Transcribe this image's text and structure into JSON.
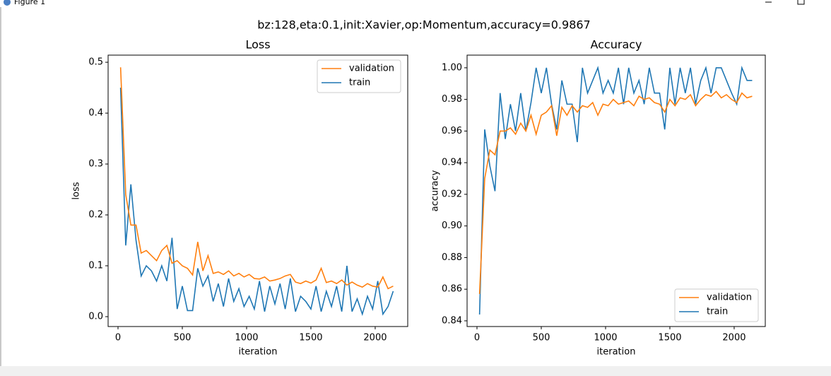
{
  "window_title": "Figure 1",
  "suptitle": "bz:128,eta:0.1,init:Xavier,op:Momentum,accuracy=0.9867",
  "chart_data": [
    {
      "type": "line",
      "title": "Loss",
      "xlabel": "iteration",
      "ylabel": "loss",
      "x": [
        20,
        60,
        100,
        140,
        180,
        220,
        260,
        300,
        340,
        380,
        420,
        460,
        500,
        540,
        580,
        620,
        660,
        700,
        740,
        780,
        820,
        860,
        900,
        940,
        980,
        1020,
        1060,
        1100,
        1140,
        1180,
        1220,
        1260,
        1300,
        1340,
        1380,
        1420,
        1460,
        1500,
        1540,
        1580,
        1620,
        1660,
        1700,
        1740,
        1780,
        1820,
        1860,
        1900,
        1940,
        1980,
        2020,
        2060,
        2100,
        2140
      ],
      "series": [
        {
          "name": "validation",
          "color": "#ff7f0e",
          "values": [
            0.49,
            0.24,
            0.18,
            0.18,
            0.125,
            0.13,
            0.12,
            0.11,
            0.13,
            0.14,
            0.105,
            0.11,
            0.1,
            0.095,
            0.082,
            0.147,
            0.09,
            0.12,
            0.085,
            0.088,
            0.083,
            0.09,
            0.08,
            0.085,
            0.078,
            0.083,
            0.075,
            0.074,
            0.078,
            0.07,
            0.072,
            0.075,
            0.08,
            0.083,
            0.068,
            0.065,
            0.07,
            0.066,
            0.072,
            0.095,
            0.067,
            0.07,
            0.065,
            0.072,
            0.062,
            0.068,
            0.062,
            0.058,
            0.065,
            0.06,
            0.058,
            0.078,
            0.055,
            0.06
          ]
        },
        {
          "name": "train",
          "color": "#1f77b4",
          "values": [
            0.45,
            0.14,
            0.26,
            0.15,
            0.08,
            0.1,
            0.09,
            0.07,
            0.1,
            0.07,
            0.155,
            0.015,
            0.06,
            0.012,
            0.012,
            0.095,
            0.06,
            0.08,
            0.03,
            0.065,
            0.02,
            0.075,
            0.03,
            0.055,
            0.02,
            0.04,
            0.015,
            0.07,
            0.01,
            0.06,
            0.025,
            0.065,
            0.015,
            0.075,
            0.01,
            0.04,
            0.03,
            0.015,
            0.06,
            0.01,
            0.05,
            0.02,
            0.06,
            0.01,
            0.1,
            0.01,
            0.035,
            0.005,
            0.04,
            0.015,
            0.07,
            0.005,
            0.02,
            0.05
          ]
        }
      ],
      "xlim": [
        -77,
        2253
      ],
      "ylim": [
        -0.0194,
        0.514
      ],
      "xticks": [
        0,
        500,
        1000,
        1500,
        2000
      ],
      "yticks": [
        {
          "value": 0,
          "label": "0.0"
        },
        0.1,
        0.2,
        0.3,
        0.4,
        0.5
      ],
      "legend": "upper right"
    },
    {
      "type": "line",
      "title": "Accuracy",
      "xlabel": "iteration",
      "ylabel": "accuracy",
      "x": [
        20,
        60,
        100,
        140,
        180,
        220,
        260,
        300,
        340,
        380,
        420,
        460,
        500,
        540,
        580,
        620,
        660,
        700,
        740,
        780,
        820,
        860,
        900,
        940,
        980,
        1020,
        1060,
        1100,
        1140,
        1180,
        1220,
        1260,
        1300,
        1340,
        1380,
        1420,
        1460,
        1500,
        1540,
        1580,
        1620,
        1660,
        1700,
        1740,
        1780,
        1820,
        1860,
        1900,
        1940,
        1980,
        2020,
        2060,
        2100,
        2140
      ],
      "series": [
        {
          "name": "validation",
          "color": "#ff7f0e",
          "values": [
            0.857,
            0.93,
            0.948,
            0.945,
            0.96,
            0.96,
            0.962,
            0.958,
            0.965,
            0.96,
            0.97,
            0.958,
            0.97,
            0.972,
            0.976,
            0.957,
            0.975,
            0.97,
            0.976,
            0.972,
            0.976,
            0.975,
            0.978,
            0.97,
            0.977,
            0.976,
            0.98,
            0.977,
            0.978,
            0.979,
            0.976,
            0.982,
            0.98,
            0.981,
            0.978,
            0.977,
            0.972,
            0.98,
            0.976,
            0.981,
            0.98,
            0.983,
            0.976,
            0.98,
            0.983,
            0.982,
            0.985,
            0.981,
            0.983,
            0.98,
            0.978,
            0.984,
            0.981,
            0.982
          ]
        },
        {
          "name": "train",
          "color": "#1f77b4",
          "values": [
            0.844,
            0.961,
            0.938,
            0.922,
            0.984,
            0.955,
            0.977,
            0.96,
            0.984,
            0.96,
            0.978,
            1.0,
            0.984,
            1.0,
            0.977,
            0.961,
            0.992,
            0.977,
            0.977,
            0.953,
            1.0,
            0.984,
            0.992,
            1.0,
            0.984,
            0.992,
            0.984,
            1.0,
            0.977,
            1.0,
            0.984,
            0.992,
            0.977,
            1.0,
            0.984,
            0.984,
            0.961,
            1.0,
            0.977,
            1.0,
            0.984,
            1.0,
            0.977,
            0.992,
            1.0,
            0.984,
            1.0,
            1.0,
            0.992,
            0.984,
            0.977,
            1.0,
            0.992,
            0.992
          ]
        }
      ],
      "xlim": [
        -77,
        2242
      ],
      "ylim": [
        0.8364,
        1.008
      ],
      "xticks": [
        0,
        500,
        1000,
        1500,
        2000
      ],
      "yticks": [
        0.84,
        0.86,
        0.88,
        {
          "value": 0.9,
          "label": "0.90"
        },
        0.92,
        0.94,
        0.96,
        0.98,
        {
          "value": 1,
          "label": "1.00"
        }
      ],
      "legend": "lower right"
    }
  ]
}
